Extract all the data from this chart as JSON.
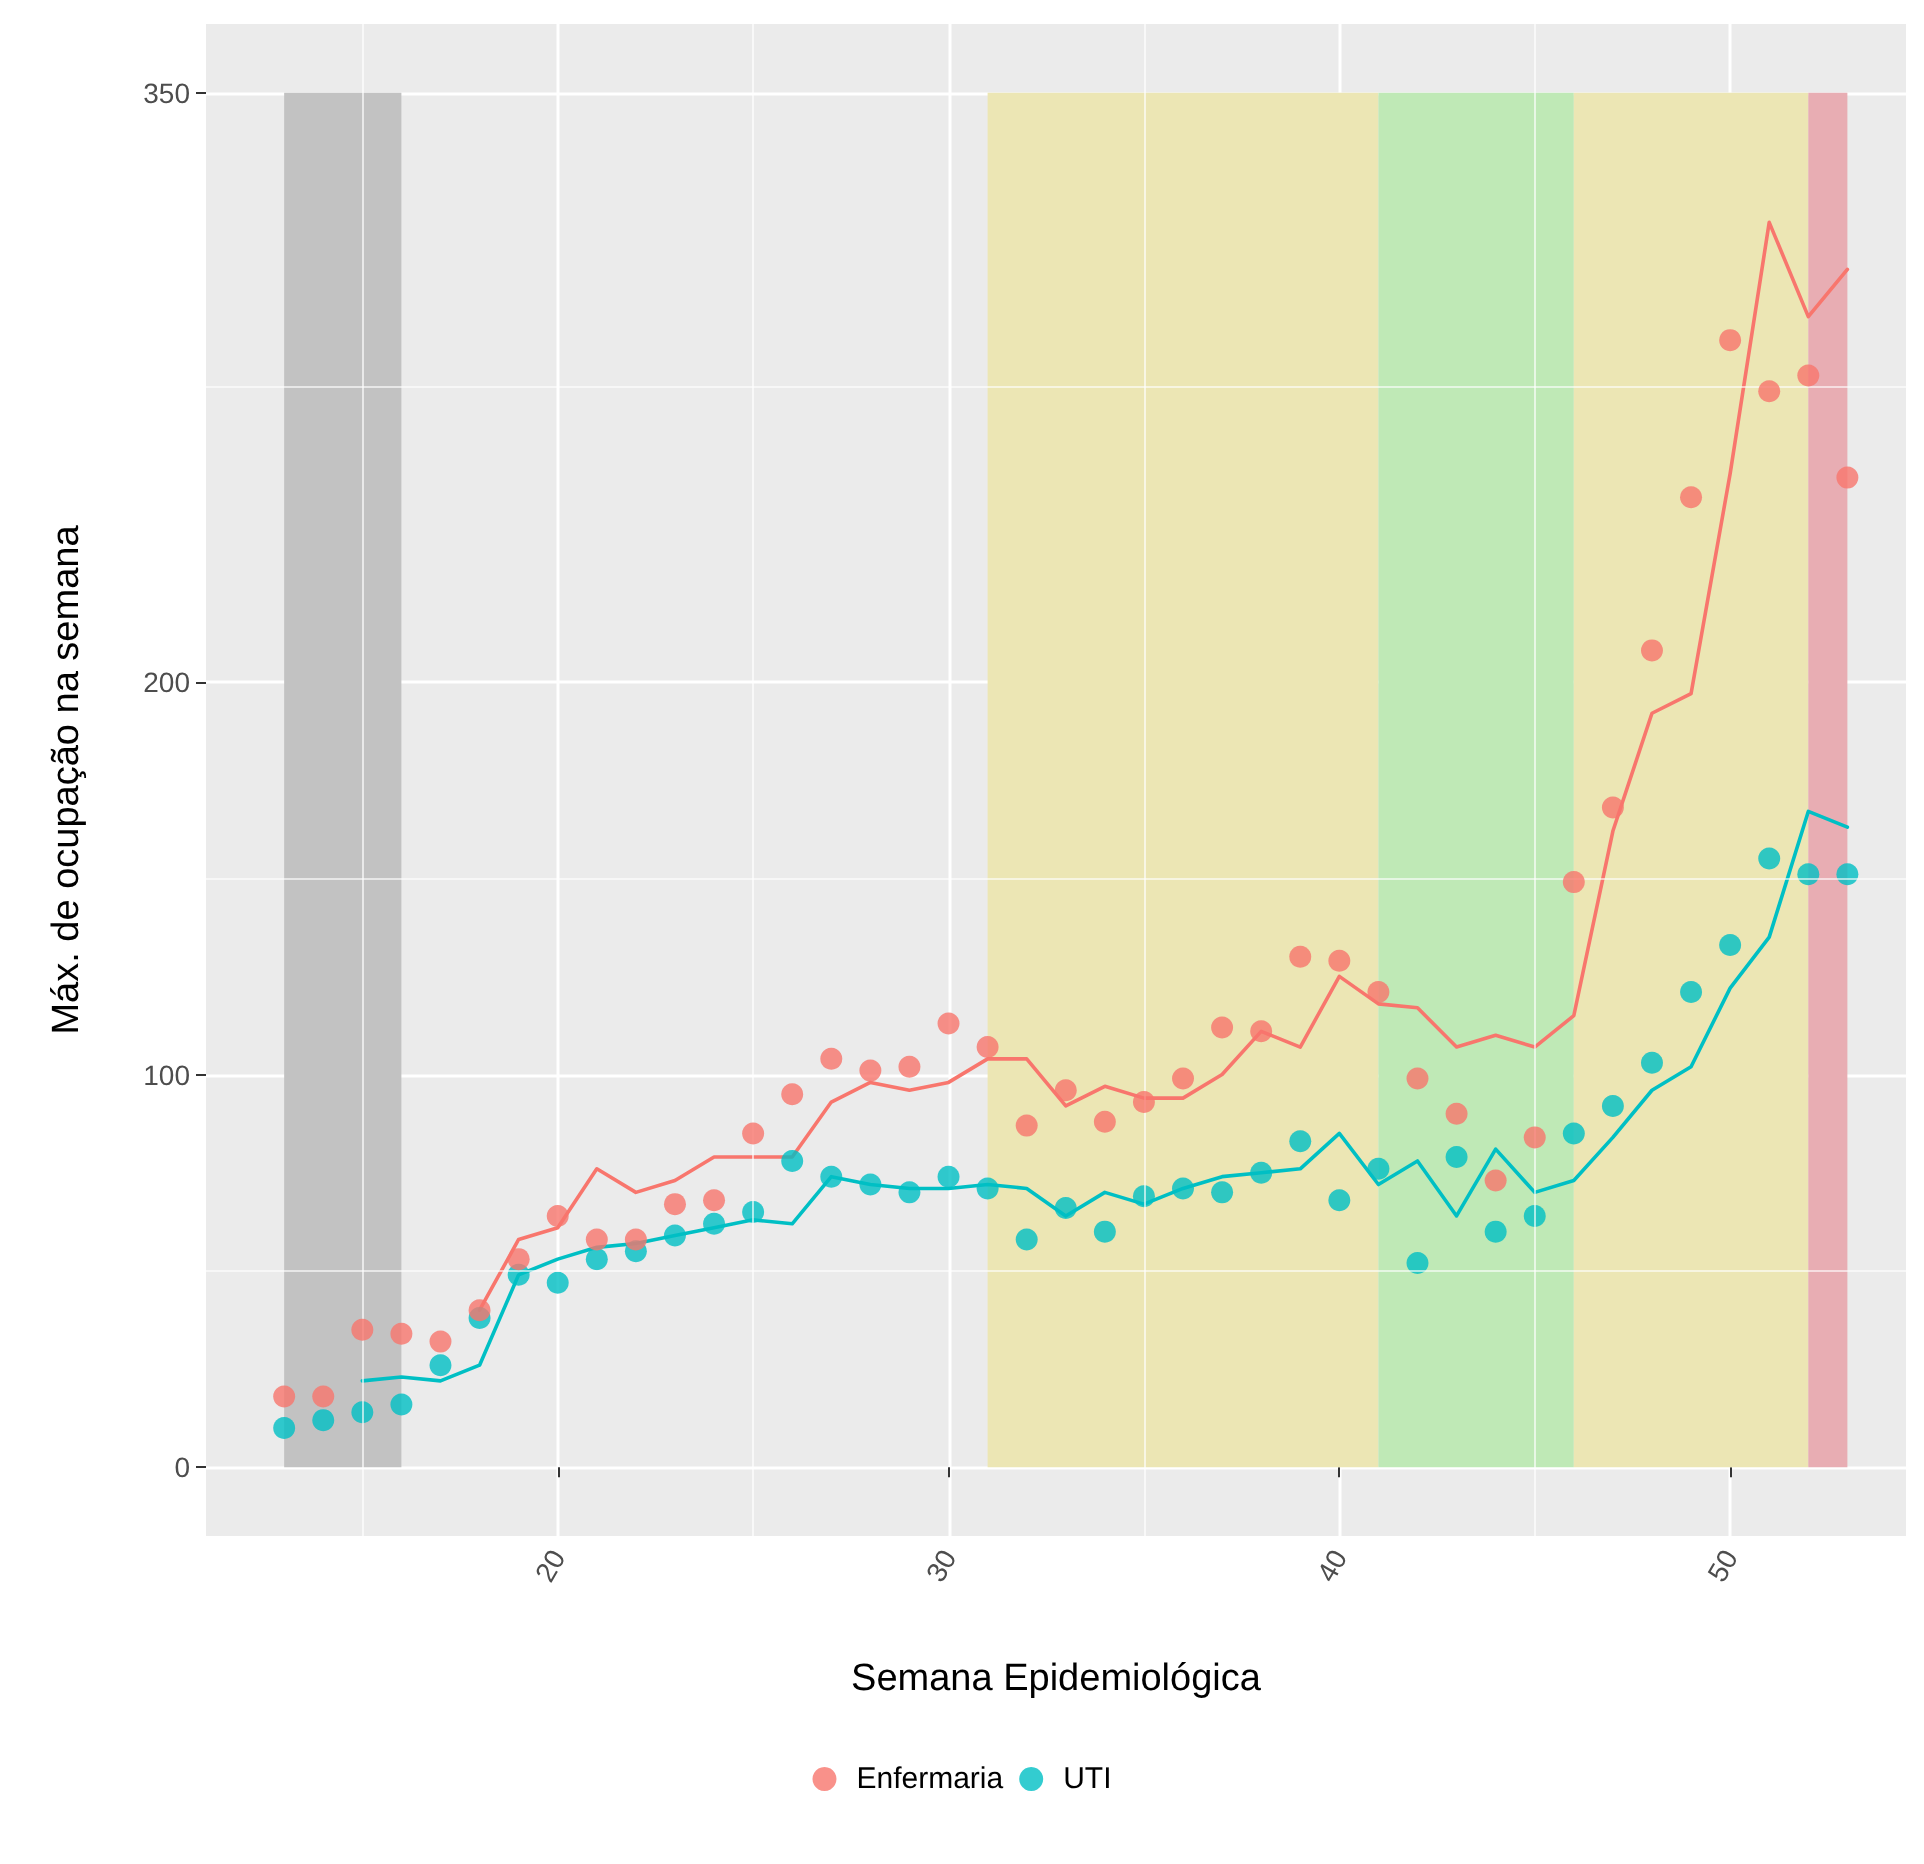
{
  "chart_data": {
    "type": "scatter",
    "xlabel": "Semana Epidemiológica",
    "ylabel": "Máx. de ocupação na semana",
    "xlim": [
      11,
      54.5
    ],
    "ylim": [
      -17.5,
      367.5
    ],
    "xticks": [
      {
        "value": 15,
        "label": null
      },
      20,
      {
        "value": 25,
        "label": null
      },
      30,
      {
        "value": 35,
        "label": null
      },
      40,
      {
        "value": 45,
        "label": null
      },
      50
    ],
    "yticks": [
      0,
      {
        "value": 50,
        "label": null
      },
      100,
      {
        "value": 150,
        "label": null
      },
      200,
      {
        "value": 275,
        "label": null
      },
      350
    ],
    "grid": true,
    "legend": "bottom",
    "bands": [
      {
        "axis": "x",
        "from": 13,
        "to": 16,
        "color": "#c2c2c2"
      },
      {
        "axis": "x",
        "from": 31,
        "to": 41,
        "color": "#ece6b4"
      },
      {
        "axis": "x",
        "from": 41,
        "to": 46,
        "color": "#bfe9b6"
      },
      {
        "axis": "x",
        "from": 46,
        "to": 52,
        "color": "#ece6b4"
      },
      {
        "axis": "x",
        "from": 52,
        "to": 53,
        "color": "#e8adb3"
      }
    ],
    "series": [
      {
        "name": "Enfermaria",
        "marker": "circle",
        "color": "#f8766d",
        "x": [
          13,
          14,
          15,
          16,
          17,
          18,
          19,
          20,
          21,
          22,
          23,
          24,
          25,
          26,
          27,
          28,
          29,
          30,
          31,
          32,
          33,
          34,
          35,
          36,
          37,
          38,
          39,
          40,
          41,
          42,
          43,
          44,
          45,
          46,
          47,
          48,
          49,
          50,
          51,
          52,
          53
        ],
        "values": [
          18,
          18,
          35,
          34,
          32,
          40,
          53,
          64,
          58,
          58,
          67,
          68,
          85,
          95,
          104,
          101,
          102,
          113,
          107,
          87,
          96,
          88,
          93,
          99,
          112,
          111,
          130,
          129,
          121,
          99,
          90,
          73,
          84,
          149,
          168,
          208,
          247,
          287,
          274,
          278,
          252
        ]
      },
      {
        "name": "UTI",
        "marker": "circle",
        "color": "#00bfc4",
        "x": [
          13,
          14,
          15,
          16,
          17,
          18,
          19,
          20,
          21,
          22,
          23,
          24,
          25,
          26,
          27,
          28,
          29,
          30,
          31,
          32,
          33,
          34,
          35,
          36,
          37,
          38,
          39,
          40,
          41,
          42,
          43,
          44,
          45,
          46,
          47,
          48,
          49,
          50,
          51,
          52,
          53
        ],
        "values": [
          10,
          12,
          14,
          16,
          26,
          38,
          49,
          47,
          53,
          55,
          59,
          62,
          65,
          78,
          74,
          72,
          70,
          74,
          71,
          58,
          66,
          60,
          69,
          71,
          70,
          75,
          83,
          68,
          76,
          52,
          79,
          60,
          64,
          85,
          92,
          103,
          121,
          133,
          155,
          151,
          151
        ]
      },
      {
        "type": "line",
        "marker": "none",
        "line_style": "solid",
        "color": "#f8766d",
        "x": [
          18,
          19,
          20,
          21,
          22,
          23,
          24,
          25,
          26,
          27,
          28,
          29,
          30,
          31,
          32,
          33,
          34,
          35,
          36,
          37,
          38,
          39,
          40,
          41,
          42,
          43,
          44,
          45,
          46,
          47,
          48,
          49,
          50,
          51,
          52,
          53
        ],
        "values": [
          40,
          58,
          61,
          76,
          70,
          73,
          79,
          79,
          79,
          93,
          98,
          96,
          98,
          104,
          104,
          92,
          97,
          94,
          94,
          100,
          111,
          107,
          125,
          118,
          117,
          107,
          110,
          107,
          115,
          162,
          192,
          197,
          253,
          317,
          293,
          305
        ]
      },
      {
        "type": "line",
        "marker": "none",
        "line_style": "solid",
        "color": "#00bfc4",
        "x": [
          15,
          16,
          17,
          18,
          19,
          20,
          21,
          22,
          23,
          24,
          25,
          26,
          27,
          28,
          29,
          30,
          31,
          32,
          33,
          34,
          35,
          36,
          37,
          38,
          39,
          40,
          41,
          42,
          43,
          44,
          45,
          46,
          47,
          48,
          49,
          50,
          51,
          52,
          53
        ],
        "values": [
          22,
          23,
          22,
          26,
          49,
          53,
          56,
          57,
          59,
          61,
          63,
          62,
          74,
          72,
          71,
          71,
          72,
          71,
          64,
          70,
          67,
          71,
          74,
          75,
          76,
          85,
          72,
          78,
          64,
          81,
          70,
          73,
          84,
          96,
          102,
          122,
          135,
          167,
          163
        ]
      }
    ]
  }
}
